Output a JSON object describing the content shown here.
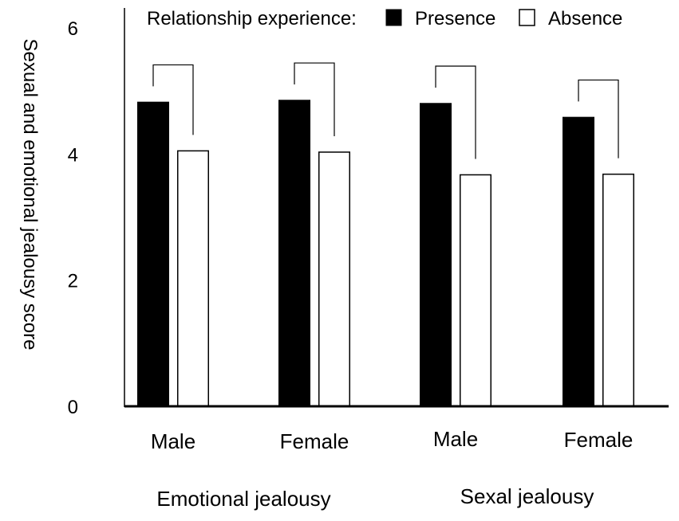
{
  "chart_data": {
    "type": "bar",
    "title": "",
    "ylabel": "Sexual and emotional jealousy score",
    "ylim": [
      0,
      6
    ],
    "yticks": [
      "0",
      "2",
      "4",
      "6"
    ],
    "legend": {
      "title": "Relationship experience:",
      "placement": "top",
      "entries": [
        {
          "label": "Presence",
          "color": "#000000"
        },
        {
          "label": "Absence",
          "color": "#ffffff"
        }
      ]
    },
    "groups": [
      {
        "label": "Emotional jealousy",
        "categories": [
          {
            "label": "Male",
            "values": [
              4.82,
              4.05
            ]
          },
          {
            "label": "Female",
            "values": [
              4.85,
              4.03
            ]
          }
        ]
      },
      {
        "label": "Sexal jealousy",
        "categories": [
          {
            "label": "Male",
            "values": [
              4.8,
              3.67
            ]
          },
          {
            "label": "Female",
            "values": [
              4.58,
              3.68
            ]
          }
        ]
      }
    ],
    "series": [
      {
        "name": "Presence",
        "color": "#000000"
      },
      {
        "name": "Absence",
        "color": "#ffffff"
      }
    ],
    "significance_brackets": true
  }
}
